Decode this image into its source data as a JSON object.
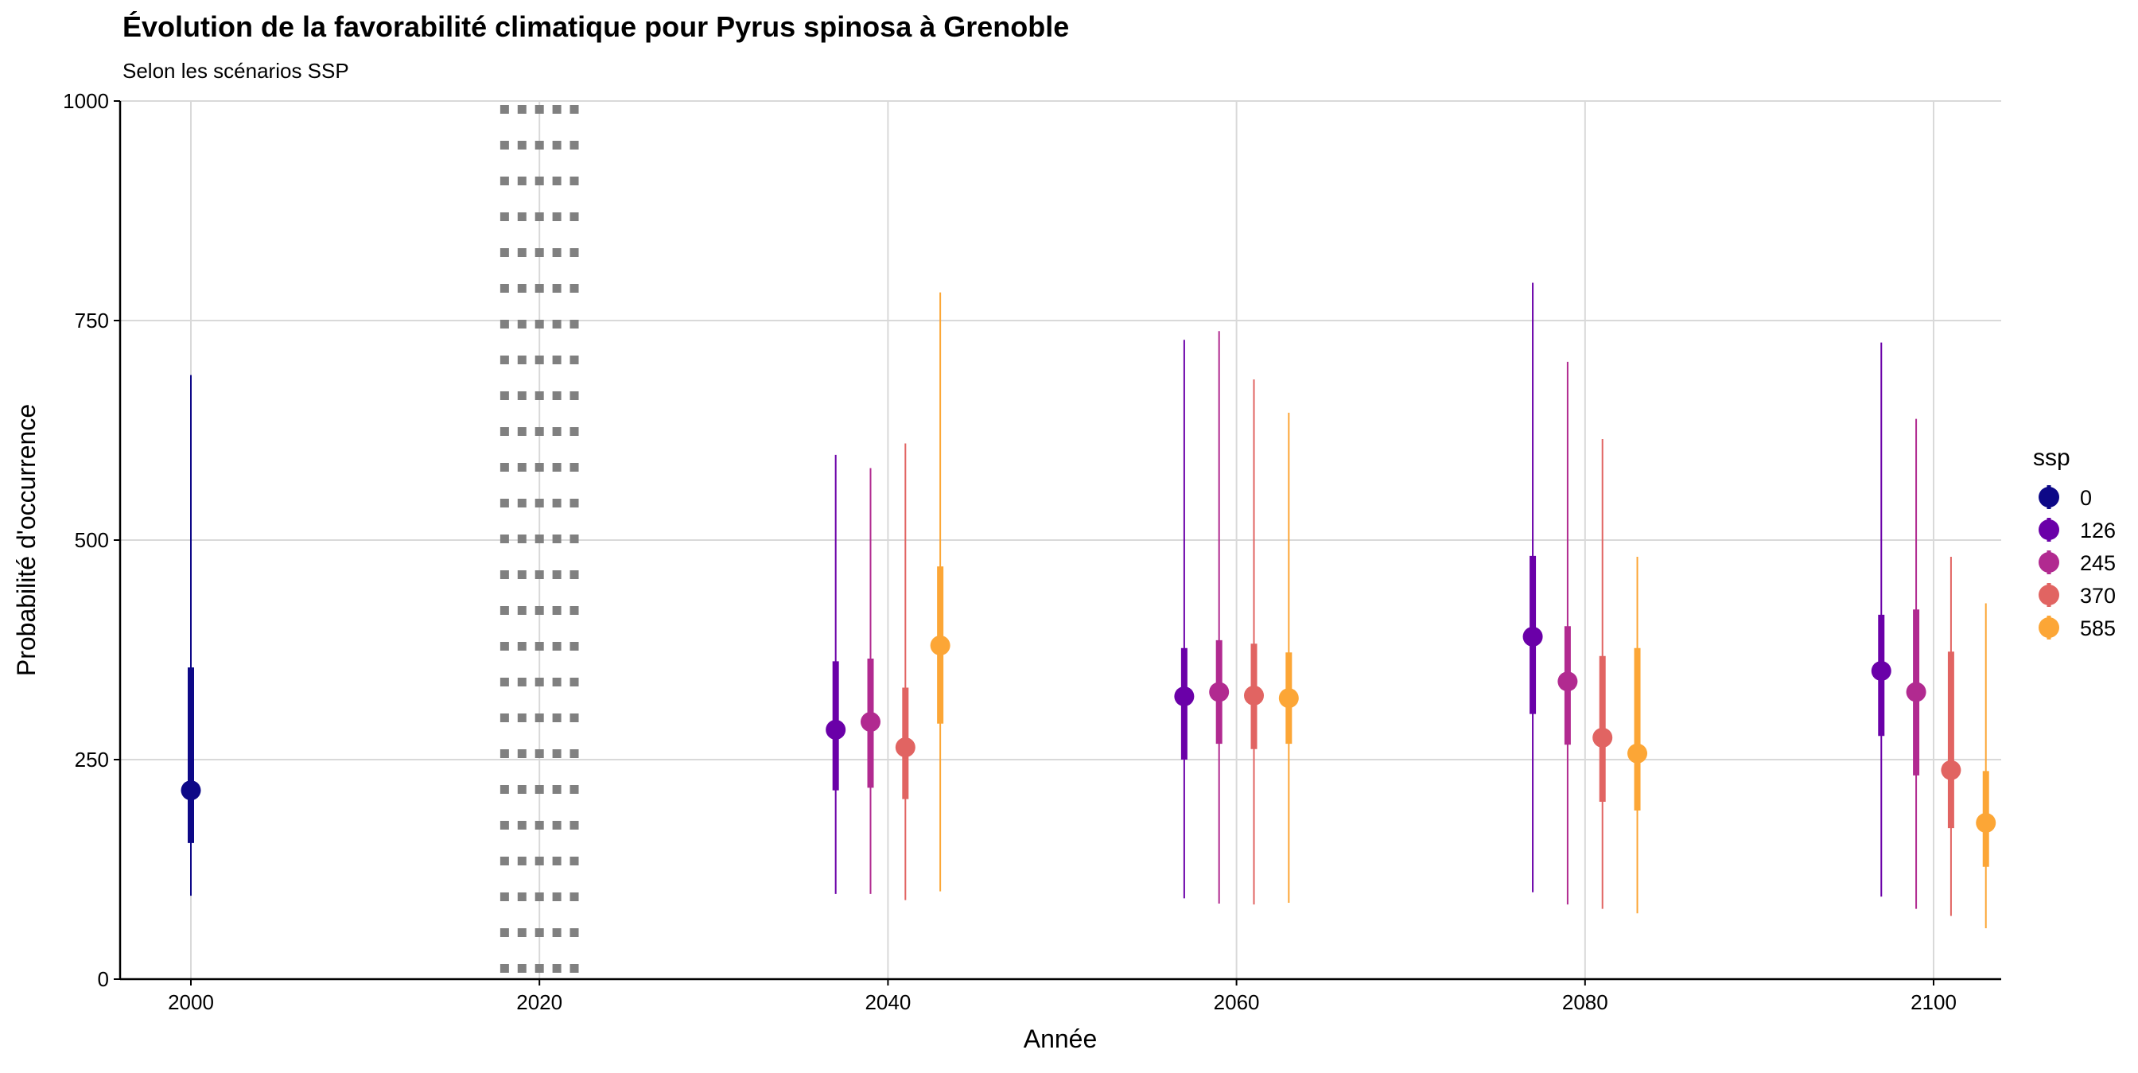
{
  "chart_data": {
    "type": "pointrange",
    "title": "Évolution de la favorabilité climatique pour Pyrus spinosa à Grenoble",
    "subtitle": "Selon les scénarios SSP",
    "xlabel": "Année",
    "ylabel": "Probabilité d'occurrence",
    "xlim": [
      1996,
      2104
    ],
    "ylim": [
      0,
      1000
    ],
    "x_ticks": [
      2000,
      2020,
      2040,
      2060,
      2080,
      2100
    ],
    "y_ticks": [
      0,
      250,
      500,
      750,
      1000
    ],
    "grid": true,
    "reference_lines_x": [
      2018,
      2019,
      2020,
      2021,
      2022
    ],
    "legend": {
      "title": "ssp",
      "position": "right"
    },
    "series": [
      {
        "name": "0",
        "color": "#0D0887",
        "points": [
          {
            "x": 2000,
            "median": 215,
            "inner": [
              155,
              355
            ],
            "outer": [
              95,
              688
            ]
          }
        ]
      },
      {
        "name": "126",
        "color": "#6A00A8",
        "points": [
          {
            "x": 2040,
            "median": 284,
            "inner": [
              215,
              362
            ],
            "outer": [
              97,
              597
            ]
          },
          {
            "x": 2060,
            "median": 322,
            "inner": [
              250,
              377
            ],
            "outer": [
              92,
              728
            ]
          },
          {
            "x": 2080,
            "median": 390,
            "inner": [
              302,
              482
            ],
            "outer": [
              99,
              793
            ]
          },
          {
            "x": 2100,
            "median": 351,
            "inner": [
              277,
              415
            ],
            "outer": [
              94,
              725
            ]
          }
        ]
      },
      {
        "name": "245",
        "color": "#B12A90",
        "points": [
          {
            "x": 2040,
            "median": 293,
            "inner": [
              218,
              365
            ],
            "outer": [
              97,
              582
            ]
          },
          {
            "x": 2060,
            "median": 327,
            "inner": [
              268,
              386
            ],
            "outer": [
              86,
              738
            ]
          },
          {
            "x": 2080,
            "median": 339,
            "inner": [
              267,
              402
            ],
            "outer": [
              85,
              703
            ]
          },
          {
            "x": 2100,
            "median": 327,
            "inner": [
              232,
              421
            ],
            "outer": [
              80,
              638
            ]
          }
        ]
      },
      {
        "name": "370",
        "color": "#E16462",
        "points": [
          {
            "x": 2040,
            "median": 264,
            "inner": [
              205,
              332
            ],
            "outer": [
              90,
              610
            ]
          },
          {
            "x": 2060,
            "median": 323,
            "inner": [
              262,
              382
            ],
            "outer": [
              85,
              683
            ]
          },
          {
            "x": 2080,
            "median": 275,
            "inner": [
              202,
              368
            ],
            "outer": [
              80,
              615
            ]
          },
          {
            "x": 2100,
            "median": 238,
            "inner": [
              172,
              373
            ],
            "outer": [
              72,
              481
            ]
          }
        ]
      },
      {
        "name": "585",
        "color": "#FCA636",
        "points": [
          {
            "x": 2040,
            "median": 380,
            "inner": [
              291,
              470
            ],
            "outer": [
              100,
              782
            ]
          },
          {
            "x": 2060,
            "median": 320,
            "inner": [
              268,
              372
            ],
            "outer": [
              87,
              645
            ]
          },
          {
            "x": 2080,
            "median": 257,
            "inner": [
              192,
              377
            ],
            "outer": [
              75,
              481
            ]
          },
          {
            "x": 2100,
            "median": 178,
            "inner": [
              128,
              237
            ],
            "outer": [
              58,
              428
            ]
          }
        ]
      }
    ]
  }
}
